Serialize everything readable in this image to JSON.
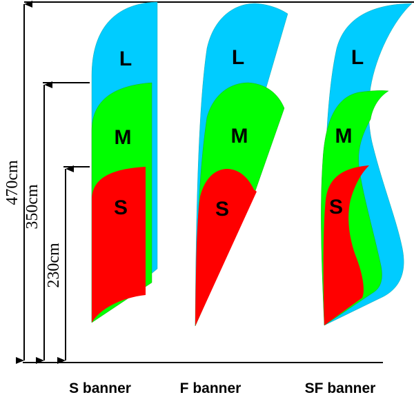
{
  "colors": {
    "large": "#00CCFF",
    "medium": "#00FF00",
    "small": "#FF0000",
    "lines": "#000000"
  },
  "dimensions": [
    {
      "label": "470cm"
    },
    {
      "label": "350cm"
    },
    {
      "label": "230cm"
    }
  ],
  "banners": [
    {
      "caption": "S banner",
      "sizes": [
        "L",
        "M",
        "S"
      ]
    },
    {
      "caption": "F banner",
      "sizes": [
        "L",
        "M",
        "S"
      ]
    },
    {
      "caption": "SF banner",
      "sizes": [
        "L",
        "M",
        "S"
      ]
    }
  ]
}
